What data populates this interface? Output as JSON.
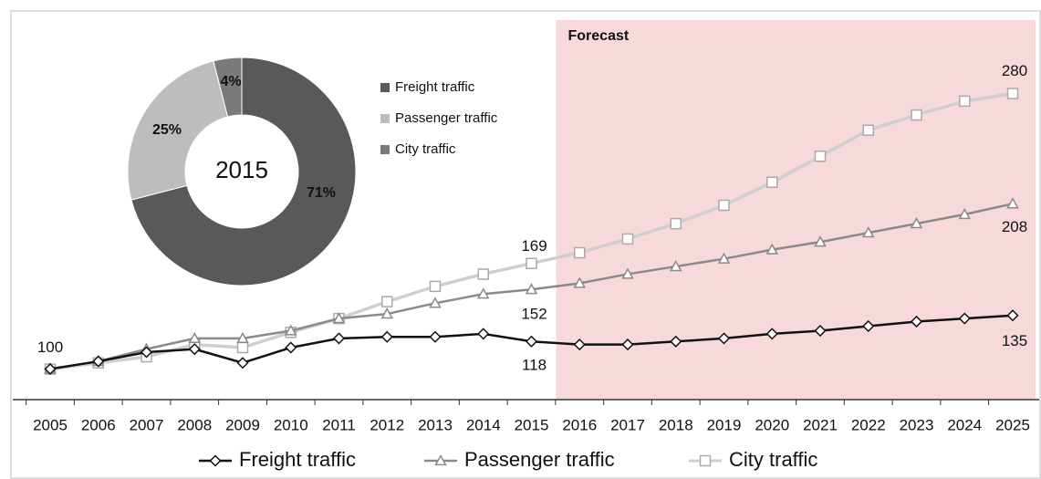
{
  "chart_data": [
    {
      "type": "line",
      "categories": [
        "2005",
        "2006",
        "2007",
        "2008",
        "2009",
        "2010",
        "2011",
        "2012",
        "2013",
        "2014",
        "2015",
        "2016",
        "2017",
        "2018",
        "2019",
        "2020",
        "2021",
        "2022",
        "2023",
        "2024",
        "2025"
      ],
      "series": [
        {
          "name": "Freight traffic",
          "color": "#111111",
          "marker": "diamond",
          "values": [
            100,
            105,
            111,
            113,
            104,
            114,
            120,
            121,
            121,
            123,
            118,
            116,
            116,
            118,
            120,
            123,
            125,
            128,
            131,
            133,
            135
          ]
        },
        {
          "name": "Passenger traffic",
          "color": "#8a8a8a",
          "marker": "triangle",
          "values": [
            100,
            105,
            113,
            120,
            120,
            125,
            133,
            136,
            143,
            149,
            152,
            156,
            162,
            167,
            172,
            178,
            183,
            189,
            195,
            201,
            208
          ]
        },
        {
          "name": "City traffic",
          "color": "#cfcfcf",
          "marker": "square",
          "values": [
            100,
            104,
            108,
            116,
            114,
            124,
            133,
            144,
            154,
            162,
            169,
            176,
            185,
            195,
            207,
            222,
            239,
            256,
            266,
            275,
            280
          ]
        }
      ],
      "ylim": [
        80,
        328
      ],
      "shaded_region": {
        "label": "Forecast",
        "start": "2015",
        "color": "#f7d9dc"
      },
      "legend": "bottom"
    },
    {
      "type": "pie",
      "title": "2015",
      "categories": [
        "Freight traffic",
        "Passenger traffic",
        "City traffic"
      ],
      "values": [
        71,
        25,
        4
      ],
      "value_labels": [
        "71%",
        "25%",
        "4%"
      ],
      "colors": [
        "#595959",
        "#bdbdbd",
        "#7a7a7a"
      ],
      "donut": true,
      "legend": "right"
    }
  ]
}
